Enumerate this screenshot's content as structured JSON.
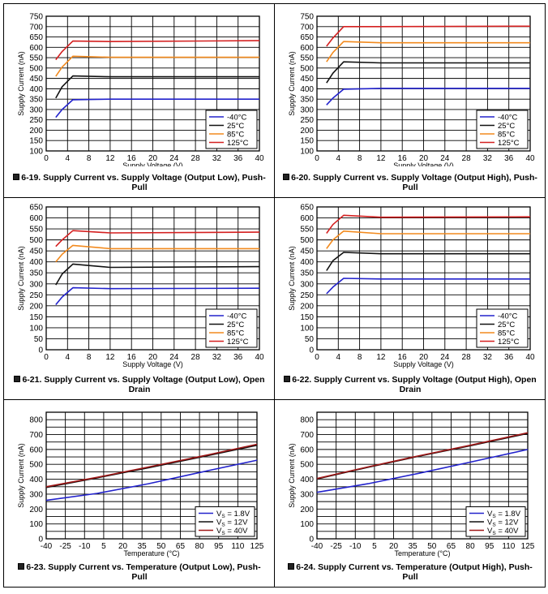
{
  "figures": [
    {
      "figure_label": "6-19",
      "caption": "Supply Current vs. Supply Voltage (Output Low), Push-Pull"
    },
    {
      "figure_label": "6-20",
      "caption": "Supply Current vs. Supply Voltage (Output High), Push-Pull"
    },
    {
      "figure_label": "6-21",
      "caption": "Supply Current vs. Supply Voltage (Output Low), Open Drain"
    },
    {
      "figure_label": "6-22",
      "caption": "Supply Current vs. Supply Voltage (Output High), Open Drain"
    },
    {
      "figure_label": "6-23",
      "caption": "Supply Current vs. Temperature (Output Low), Push-Pull"
    },
    {
      "figure_label": "6-24",
      "caption": "Supply Current vs. Temperature (Output High), Push-Pull"
    }
  ],
  "colors": {
    "blue": "#2222cc",
    "black": "#111111",
    "orange": "#f28a1e",
    "red": "#d42020",
    "darkred": "#a01818"
  },
  "chart_data": [
    {
      "type": "line",
      "xlabel": "Supply Voltage (V)",
      "ylabel": "Supply Current (nA)",
      "xlim": [
        0,
        40
      ],
      "ylim": [
        100,
        750
      ],
      "xstep": 4,
      "ystep": 50,
      "xticks": [
        "0",
        "4",
        "8",
        "12",
        "16",
        "20",
        "24",
        "28",
        "32",
        "36",
        "40"
      ],
      "yticks": [
        "100",
        "150",
        "200",
        "250",
        "300",
        "350",
        "400",
        "450",
        "500",
        "550",
        "600",
        "650",
        "700",
        "750"
      ],
      "legend": "bottom-right",
      "series": [
        {
          "name": "-40°C",
          "color": "blue",
          "x": [
            1.8,
            3,
            5,
            12,
            40
          ],
          "y": [
            262,
            300,
            347,
            350,
            350
          ]
        },
        {
          "name": "25°C",
          "color": "black",
          "x": [
            1.8,
            3,
            5,
            12,
            40
          ],
          "y": [
            355,
            410,
            462,
            458,
            458
          ]
        },
        {
          "name": "85°C",
          "color": "orange",
          "x": [
            1.8,
            3,
            5,
            12,
            40
          ],
          "y": [
            460,
            505,
            557,
            552,
            552
          ]
        },
        {
          "name": "125°C",
          "color": "red",
          "x": [
            1.8,
            3,
            5,
            12,
            40
          ],
          "y": [
            540,
            580,
            630,
            628,
            632
          ]
        }
      ]
    },
    {
      "type": "line",
      "xlabel": "Supply Voltage (V)",
      "ylabel": "Supply Current (nA)",
      "xlim": [
        0,
        40
      ],
      "ylim": [
        100,
        750
      ],
      "xstep": 4,
      "ystep": 50,
      "xticks": [
        "0",
        "4",
        "8",
        "12",
        "16",
        "20",
        "24",
        "28",
        "32",
        "36",
        "40"
      ],
      "yticks": [
        "100",
        "150",
        "200",
        "250",
        "300",
        "350",
        "400",
        "450",
        "500",
        "550",
        "600",
        "650",
        "700",
        "750"
      ],
      "legend": "bottom-right",
      "series": [
        {
          "name": "-40°C",
          "color": "blue",
          "x": [
            1.8,
            3,
            5,
            12,
            40
          ],
          "y": [
            322,
            355,
            398,
            402,
            402
          ]
        },
        {
          "name": "25°C",
          "color": "black",
          "x": [
            1.8,
            3,
            5,
            12,
            40
          ],
          "y": [
            428,
            475,
            530,
            525,
            525
          ]
        },
        {
          "name": "85°C",
          "color": "orange",
          "x": [
            1.8,
            3,
            5,
            12,
            40
          ],
          "y": [
            530,
            575,
            628,
            622,
            622
          ]
        },
        {
          "name": "125°C",
          "color": "red",
          "x": [
            1.8,
            3,
            5,
            12,
            40
          ],
          "y": [
            605,
            645,
            700,
            700,
            702
          ]
        }
      ]
    },
    {
      "type": "line",
      "xlabel": "Supply Voltage (V)",
      "ylabel": "Supply Current (nA)",
      "xlim": [
        0,
        40
      ],
      "ylim": [
        0,
        650
      ],
      "xstep": 4,
      "ystep": 50,
      "xticks": [
        "0",
        "4",
        "8",
        "12",
        "16",
        "20",
        "24",
        "28",
        "32",
        "36",
        "40"
      ],
      "yticks": [
        "0",
        "50",
        "100",
        "150",
        "200",
        "250",
        "300",
        "350",
        "400",
        "450",
        "500",
        "550",
        "600",
        "650"
      ],
      "legend": "bottom-right",
      "series": [
        {
          "name": "-40°C",
          "color": "blue",
          "x": [
            1.8,
            3,
            5,
            12,
            40
          ],
          "y": [
            205,
            240,
            282,
            278,
            280
          ]
        },
        {
          "name": "25°C",
          "color": "black",
          "x": [
            1.8,
            3,
            5,
            12,
            40
          ],
          "y": [
            295,
            345,
            390,
            375,
            378
          ]
        },
        {
          "name": "85°C",
          "color": "orange",
          "x": [
            1.8,
            3,
            5,
            12,
            40
          ],
          "y": [
            400,
            435,
            475,
            460,
            460
          ]
        },
        {
          "name": "125°C",
          "color": "red",
          "x": [
            1.8,
            3,
            5,
            12,
            40
          ],
          "y": [
            470,
            500,
            542,
            532,
            535
          ]
        }
      ]
    },
    {
      "type": "line",
      "xlabel": "Supply Voltage (V)",
      "ylabel": "Supply Current (nA)",
      "xlim": [
        0,
        40
      ],
      "ylim": [
        0,
        650
      ],
      "xstep": 4,
      "ystep": 50,
      "xticks": [
        "0",
        "4",
        "8",
        "12",
        "16",
        "20",
        "24",
        "28",
        "32",
        "36",
        "40"
      ],
      "yticks": [
        "0",
        "50",
        "100",
        "150",
        "200",
        "250",
        "300",
        "350",
        "400",
        "450",
        "500",
        "550",
        "600",
        "650"
      ],
      "legend": "bottom-right",
      "series": [
        {
          "name": "-40°C",
          "color": "blue",
          "x": [
            1.8,
            3,
            5,
            12,
            40
          ],
          "y": [
            255,
            285,
            325,
            322,
            322
          ]
        },
        {
          "name": "25°C",
          "color": "black",
          "x": [
            1.8,
            3,
            5,
            12,
            40
          ],
          "y": [
            360,
            405,
            443,
            437,
            437
          ]
        },
        {
          "name": "85°C",
          "color": "orange",
          "x": [
            1.8,
            3,
            5,
            12,
            40
          ],
          "y": [
            460,
            500,
            540,
            528,
            528
          ]
        },
        {
          "name": "125°C",
          "color": "red",
          "x": [
            1.8,
            3,
            5,
            12,
            40
          ],
          "y": [
            530,
            570,
            612,
            603,
            605
          ]
        }
      ]
    },
    {
      "type": "line",
      "xlabel": "Temperature (°C)",
      "ylabel": "Supply Current (nA)",
      "xlim": [
        -40,
        125
      ],
      "ylim": [
        0,
        850
      ],
      "xstep": 15,
      "ystep": 50,
      "xticks": [
        "-40",
        "-25",
        "-10",
        "5",
        "20",
        "35",
        "50",
        "65",
        "80",
        "95",
        "110",
        "125"
      ],
      "yticks": [
        "0",
        "100",
        "200",
        "300",
        "400",
        "500",
        "600",
        "700",
        "800"
      ],
      "legend": "bottom-right",
      "series": [
        {
          "name": "Vₛ = 1.8V",
          "label_main": "V",
          "label_sub": "S",
          "label_rest": " = 1.8V",
          "color": "blue",
          "x": [
            -40,
            0,
            40,
            80,
            125
          ],
          "y": [
            258,
            305,
            370,
            445,
            528
          ]
        },
        {
          "name": "Vₛ = 12V",
          "label_main": "V",
          "label_sub": "S",
          "label_rest": " = 12V",
          "color": "black",
          "x": [
            -40,
            0,
            40,
            80,
            125
          ],
          "y": [
            345,
            410,
            477,
            547,
            628
          ]
        },
        {
          "name": "Vₛ = 40V",
          "label_main": "V",
          "label_sub": "S",
          "label_rest": " = 40V",
          "color": "darkred",
          "x": [
            -40,
            0,
            40,
            80,
            125
          ],
          "y": [
            350,
            413,
            482,
            552,
            635
          ]
        }
      ]
    },
    {
      "type": "line",
      "xlabel": "Temperature (°C)",
      "ylabel": "Supply Current (nA)",
      "xlim": [
        -40,
        125
      ],
      "ylim": [
        0,
        850
      ],
      "xstep": 15,
      "ystep": 50,
      "xticks": [
        "-40",
        "-25",
        "-10",
        "5",
        "20",
        "35",
        "50",
        "65",
        "80",
        "95",
        "110",
        "125"
      ],
      "yticks": [
        "0",
        "100",
        "200",
        "300",
        "400",
        "500",
        "600",
        "700",
        "800"
      ],
      "legend": "bottom-right",
      "series": [
        {
          "name": "Vₛ = 1.8V",
          "label_main": "V",
          "label_sub": "S",
          "label_rest": " = 1.8V",
          "color": "blue",
          "x": [
            -40,
            0,
            40,
            80,
            125
          ],
          "y": [
            312,
            370,
            440,
            515,
            600
          ]
        },
        {
          "name": "Vₛ = 12V",
          "label_main": "V",
          "label_sub": "S",
          "label_rest": " = 12V",
          "color": "black",
          "x": [
            -40,
            0,
            40,
            80,
            125
          ],
          "y": [
            402,
            480,
            555,
            625,
            708
          ]
        },
        {
          "name": "Vₛ = 40V",
          "label_main": "V",
          "label_sub": "S",
          "label_rest": " = 40V",
          "color": "darkred",
          "x": [
            -40,
            0,
            40,
            80,
            125
          ],
          "y": [
            405,
            483,
            558,
            628,
            712
          ]
        }
      ]
    }
  ]
}
